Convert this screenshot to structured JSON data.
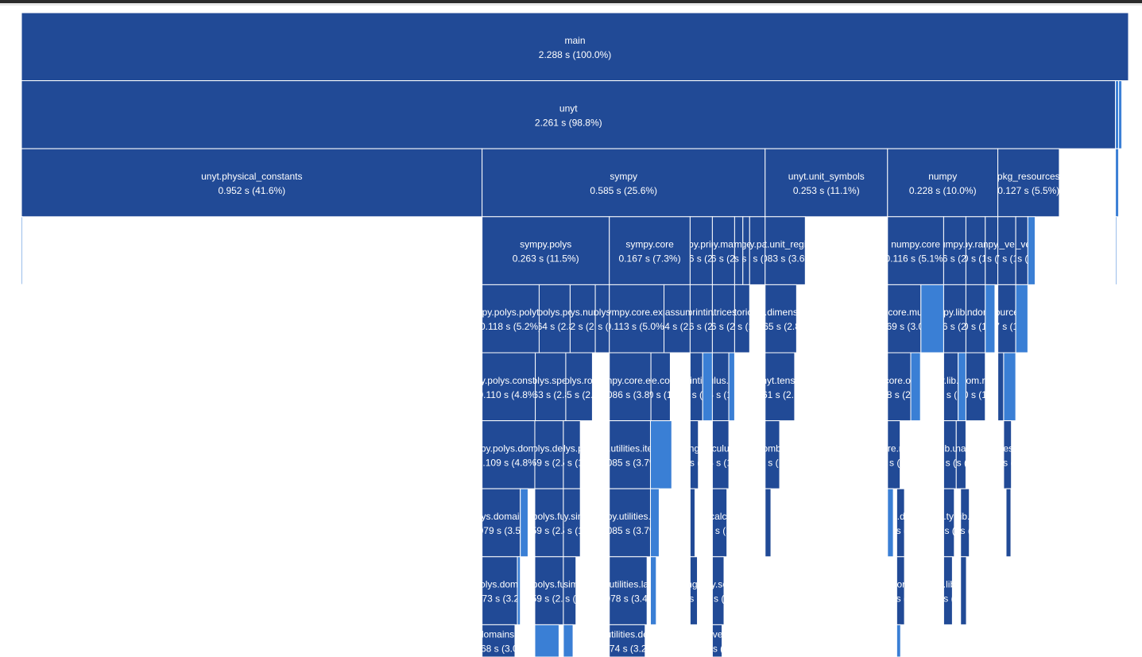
{
  "chart_data": {
    "type": "icicle",
    "title": "",
    "colors": {
      "primary": "#214a96",
      "light": "#3a7fd5",
      "edge": "#ffffff"
    },
    "nodes": [
      {
        "level": 0,
        "start": 0.0,
        "value": 2.288,
        "name": "main",
        "time": "2.288 s (100.0%)"
      },
      {
        "level": 1,
        "start": 0.0,
        "value": 2.261,
        "name": "unyt",
        "time": "2.261 s (98.8%)"
      },
      {
        "level": 1,
        "start": 2.261,
        "value": 0.0066,
        "name": "",
        "time": "",
        "light": true
      },
      {
        "level": 1,
        "start": 2.2676,
        "value": 0.0066,
        "name": "",
        "time": "",
        "light": true
      },
      {
        "level": 2,
        "start": 0.0,
        "value": 0.952,
        "name": "unyt.physical_constants",
        "time": "0.952 s (41.6%)"
      },
      {
        "level": 2,
        "start": 0.952,
        "value": 0.585,
        "name": "sympy",
        "time": "0.585 s (25.6%)"
      },
      {
        "level": 2,
        "start": 1.537,
        "value": 0.253,
        "name": "unyt.unit_symbols",
        "time": "0.253 s (11.1%)"
      },
      {
        "level": 2,
        "start": 1.79,
        "value": 0.228,
        "name": "numpy",
        "time": "0.228 s (10.0%)"
      },
      {
        "level": 2,
        "start": 2.018,
        "value": 0.127,
        "name": "pkg_resources",
        "time": "0.127 s (5.5%)"
      },
      {
        "level": 2,
        "start": 2.261,
        "value": 0.0066,
        "name": "",
        "time": "",
        "light": true
      },
      {
        "level": 3,
        "start": 0.0,
        "value": 0.0016,
        "name": "",
        "time": "",
        "light": true
      },
      {
        "level": 3,
        "start": 0.952,
        "value": 0.263,
        "name": "sympy.polys",
        "time": "0.263 s (11.5%)"
      },
      {
        "level": 3,
        "start": 1.215,
        "value": 0.167,
        "name": "sympy.core",
        "time": "0.167 s (7.3%)"
      },
      {
        "level": 3,
        "start": 1.382,
        "value": 0.046,
        "name": "sympy.printing",
        "time": "0.046 s (2.0%)"
      },
      {
        "level": 3,
        "start": 1.428,
        "value": 0.046,
        "name": "sympy.matrices",
        "time": "0.046 s (2.0%)"
      },
      {
        "level": 3,
        "start": 1.474,
        "value": 0.017,
        "name": "sympy.combinatorics",
        "time": "0.017 s (0.7%)"
      },
      {
        "level": 3,
        "start": 1.491,
        "value": 0.014,
        "name": "sympy.geometry",
        "time": "0.014 s (0.6%)"
      },
      {
        "level": 3,
        "start": 1.505,
        "value": 0.032,
        "name": "sympy.parsing",
        "time": "0.032 s (1.4%)"
      },
      {
        "level": 3,
        "start": 1.537,
        "value": 0.083,
        "name": "unyt.unit_registry",
        "time": "0.083 s (3.6%)"
      },
      {
        "level": 3,
        "start": 1.79,
        "value": 0.116,
        "name": "numpy.core",
        "time": "0.116 s (5.1%)"
      },
      {
        "level": 3,
        "start": 1.906,
        "value": 0.046,
        "name": "numpy.lib",
        "time": "0.046 s (2.0%)"
      },
      {
        "level": 3,
        "start": 1.952,
        "value": 0.04,
        "name": "numpy.random",
        "time": "0.040 s (1.7%)"
      },
      {
        "level": 3,
        "start": 1.992,
        "value": 0.026,
        "name": "numpy.ma",
        "time": "0.026 s (1.1%)"
      },
      {
        "level": 3,
        "start": 2.018,
        "value": 0.037,
        "name": "pkg_resources._vendor.packaging",
        "time": "0.037 s (1.6%)"
      },
      {
        "level": 3,
        "start": 2.055,
        "value": 0.025,
        "name": "pkg_resources._vendor.pyparsing",
        "time": "0.025 s (1.1%)"
      },
      {
        "level": 3,
        "start": 2.08,
        "value": 0.015,
        "name": "",
        "time": "",
        "light": true
      },
      {
        "level": 3,
        "start": 2.261,
        "value": 0.0016,
        "name": "",
        "time": "",
        "light": true
      },
      {
        "level": 4,
        "start": 0.952,
        "value": 0.118,
        "name": "sympy.polys.polytools",
        "time": "0.118 s (5.2%)"
      },
      {
        "level": 4,
        "start": 1.07,
        "value": 0.064,
        "name": "sympy.polys.polyroots",
        "time": "0.064 s (2.8%)"
      },
      {
        "level": 4,
        "start": 1.134,
        "value": 0.052,
        "name": "sympy.polys.numberfields",
        "time": "0.052 s (2.3%)"
      },
      {
        "level": 4,
        "start": 1.186,
        "value": 0.029,
        "name": "sympy.polys.partfrac",
        "time": "0.029 s (1.3%)"
      },
      {
        "level": 4,
        "start": 1.215,
        "value": 0.113,
        "name": "sympy.core.expr",
        "time": "0.113 s (5.0%)"
      },
      {
        "level": 4,
        "start": 1.328,
        "value": 0.054,
        "name": "sympy.assumptions",
        "time": "0.054 s (2.4%)"
      },
      {
        "level": 4,
        "start": 1.382,
        "value": 0.046,
        "name": "sympy.printing.pretty",
        "time": "0.046 s (2.0%)"
      },
      {
        "level": 4,
        "start": 1.428,
        "value": 0.046,
        "name": "sympy.matrices.common",
        "time": "0.046 s (2.0%)"
      },
      {
        "level": 4,
        "start": 1.474,
        "value": 0.031,
        "name": "sympy.combinatorics.perm_groups",
        "time": "0.031 s (1.4%)"
      },
      {
        "level": 4,
        "start": 1.537,
        "value": 0.065,
        "name": "unyt.dimensions",
        "time": "0.065 s (2.8%)"
      },
      {
        "level": 4,
        "start": 1.79,
        "value": 0.069,
        "name": "numpy.core.multiarray",
        "time": "0.069 s (3.0%)"
      },
      {
        "level": 4,
        "start": 1.859,
        "value": 0.047,
        "name": "",
        "time": "",
        "light": true
      },
      {
        "level": 4,
        "start": 1.906,
        "value": 0.046,
        "name": "numpy.lib.utils",
        "time": "0.046 s (2.0%)"
      },
      {
        "level": 4,
        "start": 1.952,
        "value": 0.04,
        "name": "numpy.random.mtrand",
        "time": "0.040 s (1.7%)"
      },
      {
        "level": 4,
        "start": 1.992,
        "value": 0.02,
        "name": "",
        "time": "",
        "light": true
      },
      {
        "level": 4,
        "start": 2.018,
        "value": 0.037,
        "name": "pkg_resources.extern",
        "time": "0.037 s (1.6%)"
      },
      {
        "level": 4,
        "start": 2.055,
        "value": 0.025,
        "name": "",
        "time": "",
        "light": true
      },
      {
        "level": 5,
        "start": 0.952,
        "value": 0.11,
        "name": "sympy.polys.constructor",
        "time": "0.110 s (4.8%)"
      },
      {
        "level": 5,
        "start": 1.062,
        "value": 0.063,
        "name": "sympy.polys.specialpolys",
        "time": "0.063 s (2.8%)"
      },
      {
        "level": 5,
        "start": 1.125,
        "value": 0.055,
        "name": "sympy.polys.rootoftools",
        "time": "0.055 s (2.4%)"
      },
      {
        "level": 5,
        "start": 1.215,
        "value": 0.086,
        "name": "sympy.core.evalf",
        "time": "0.086 s (3.8%)"
      },
      {
        "level": 5,
        "start": 1.301,
        "value": 0.04,
        "name": "sympy.core.compatibility",
        "time": "0.040 s (1.7%)"
      },
      {
        "level": 5,
        "start": 1.382,
        "value": 0.026,
        "name": "sympy.printing.ccode",
        "time": "0.026 s (1.1%)"
      },
      {
        "level": 5,
        "start": 1.408,
        "value": 0.02,
        "name": "",
        "time": "",
        "light": true
      },
      {
        "level": 5,
        "start": 1.428,
        "value": 0.034,
        "name": "sympy.calculus.singularities",
        "time": "0.034 s (1.5%)"
      },
      {
        "level": 5,
        "start": 1.462,
        "value": 0.012,
        "name": "",
        "time": "",
        "light": true
      },
      {
        "level": 5,
        "start": 1.537,
        "value": 0.061,
        "name": "unyt.tensor",
        "time": "0.061 s (2.7%)"
      },
      {
        "level": 5,
        "start": 1.79,
        "value": 0.048,
        "name": "numpy.core.overrides",
        "time": "0.048 s (2.1%)"
      },
      {
        "level": 5,
        "start": 1.838,
        "value": 0.02,
        "name": "",
        "time": "",
        "light": true
      },
      {
        "level": 5,
        "start": 1.906,
        "value": 0.03,
        "name": "numpy.lib.mixins",
        "time": "0.030 s (1.3%)"
      },
      {
        "level": 5,
        "start": 1.936,
        "value": 0.016,
        "name": "",
        "time": "",
        "light": true
      },
      {
        "level": 5,
        "start": 1.952,
        "value": 0.04,
        "name": "numpy.random.randomstate",
        "time": "0.040 s (1.7%)"
      },
      {
        "level": 5,
        "start": 2.018,
        "value": 0.012,
        "name": "pkg_resources._vendor",
        "time": "0.012 s (0.5%)"
      },
      {
        "level": 5,
        "start": 2.03,
        "value": 0.025,
        "name": "",
        "time": "",
        "light": true
      },
      {
        "level": 6,
        "start": 0.952,
        "value": 0.109,
        "name": "sympy.polys.domains",
        "time": "0.109 s (4.8%)"
      },
      {
        "level": 6,
        "start": 1.061,
        "value": 0.059,
        "name": "sympy.polys.densebasic",
        "time": "0.059 s (2.6%)"
      },
      {
        "level": 6,
        "start": 1.12,
        "value": 0.035,
        "name": "sympy.polys.polyerrors",
        "time": "0.035 s (1.5%)"
      },
      {
        "level": 6,
        "start": 1.215,
        "value": 0.085,
        "name": "sympy.utilities.iterables",
        "time": "0.085 s (3.7%)"
      },
      {
        "level": 6,
        "start": 1.3,
        "value": 0.044,
        "name": "",
        "time": "",
        "light": true
      },
      {
        "level": 6,
        "start": 1.382,
        "value": 0.017,
        "name": "sympy.printing.codeprinter",
        "time": "0.017 s (0.7%)"
      },
      {
        "level": 6,
        "start": 1.428,
        "value": 0.034,
        "name": "sympy.calculus.calculus",
        "time": "0.034 s (1.5%)"
      },
      {
        "level": 6,
        "start": 1.537,
        "value": 0.03,
        "name": "sympy.combinatorics",
        "time": "0.030 s (1.3%)"
      },
      {
        "level": 6,
        "start": 1.79,
        "value": 0.026,
        "name": "numpy.core.multiarray",
        "time": "0.026 s (1.1%)"
      },
      {
        "level": 6,
        "start": 1.906,
        "value": 0.026,
        "name": "numpy.lib.ufunclike",
        "time": "0.026 s (1.1%)"
      },
      {
        "level": 6,
        "start": 1.932,
        "value": 0.02,
        "name": "numpy.lib.nanfunctions",
        "time": "0.020 s (0.9%)"
      },
      {
        "level": 6,
        "start": 2.03,
        "value": 0.016,
        "name": "pkg_resources._vendor.six",
        "time": "0.016 s (0.7%)"
      },
      {
        "level": 7,
        "start": 0.952,
        "value": 0.079,
        "name": "sympy.polys.domains.domain",
        "time": "0.079 s (3.5%)"
      },
      {
        "level": 7,
        "start": 1.031,
        "value": 0.016,
        "name": "",
        "time": "",
        "light": true
      },
      {
        "level": 7,
        "start": 1.061,
        "value": 0.059,
        "name": "sympy.polys.functions",
        "time": "0.059 s (2.6%)"
      },
      {
        "level": 7,
        "start": 1.12,
        "value": 0.035,
        "name": "sympy.simplify",
        "time": "0.035 s (1.5%)"
      },
      {
        "level": 7,
        "start": 1.215,
        "value": 0.085,
        "name": "sympy.utilities.misc",
        "time": "0.085 s (3.7%)"
      },
      {
        "level": 7,
        "start": 1.3,
        "value": 0.018,
        "name": "",
        "time": "",
        "light": true
      },
      {
        "level": 7,
        "start": 1.382,
        "value": 0.01,
        "name": "sympy.printing.str",
        "time": "0.010 s (0.4%)"
      },
      {
        "level": 7,
        "start": 1.428,
        "value": 0.03,
        "name": "sympy.calculus.util",
        "time": "0.030 s (1.3%)"
      },
      {
        "level": 7,
        "start": 1.537,
        "value": 0.012,
        "name": "unyt.tolerances",
        "time": "0.012 s (0.5%)"
      },
      {
        "level": 7,
        "start": 1.79,
        "value": 0.012,
        "name": "",
        "time": "",
        "light": true
      },
      {
        "level": 7,
        "start": 1.809,
        "value": 0.016,
        "name": "numpy.core.defchararray",
        "time": "0.016 s (0.7%)"
      },
      {
        "level": 7,
        "start": 1.906,
        "value": 0.022,
        "name": "numpy.lib.type_check",
        "time": "0.022 s (1.0%)"
      },
      {
        "level": 7,
        "start": 1.941,
        "value": 0.018,
        "name": "numpy.lib.scimath",
        "time": "0.018 s (0.8%)"
      },
      {
        "level": 7,
        "start": 2.035,
        "value": 0.01,
        "name": "pkg_resources.extern.six",
        "time": "0.010 s (0.4%)"
      },
      {
        "level": 8,
        "start": 0.952,
        "value": 0.073,
        "name": "sympy.polys.domains.ring",
        "time": "0.073 s (3.2%)"
      },
      {
        "level": 8,
        "start": 1.025,
        "value": 0.006,
        "name": "",
        "time": "",
        "light": true
      },
      {
        "level": 8,
        "start": 1.061,
        "value": 0.059,
        "name": "sympy.polys.functions",
        "time": "0.059 s (2.6%)"
      },
      {
        "level": 8,
        "start": 1.12,
        "value": 0.026,
        "name": "sympy.simplify.fu",
        "time": "0.026 s (1.1%)"
      },
      {
        "level": 8,
        "start": 1.215,
        "value": 0.078,
        "name": "sympy.utilities.lambdify",
        "time": "0.078 s (3.4%)"
      },
      {
        "level": 8,
        "start": 1.3,
        "value": 0.012,
        "name": "",
        "time": "",
        "light": true
      },
      {
        "level": 8,
        "start": 1.382,
        "value": 0.015,
        "name": "sympy.printing.conventions",
        "time": "0.015 s (0.7%)"
      },
      {
        "level": 8,
        "start": 1.428,
        "value": 0.024,
        "name": "sympy.solvers",
        "time": "0.024 s (1.0%)"
      },
      {
        "level": 8,
        "start": 1.809,
        "value": 0.016,
        "name": "numpy.core.umath",
        "time": "0.016 s (0.7%)"
      },
      {
        "level": 8,
        "start": 1.906,
        "value": 0.018,
        "name": "numpy.lib.npyio",
        "time": "0.018 s (0.8%)"
      },
      {
        "level": 8,
        "start": 1.941,
        "value": 0.012,
        "name": "numpy.lib.scimath",
        "time": "0.012 s (0.5%)"
      },
      {
        "level": 9,
        "start": 0.952,
        "value": 0.068,
        "name": "sympy.polys.domains.algebraicfield",
        "time": "0.068 s (3.0%)"
      },
      {
        "level": 9,
        "start": 1.061,
        "value": 0.05,
        "name": "",
        "time": "",
        "light": true
      },
      {
        "level": 9,
        "start": 1.12,
        "value": 0.02,
        "name": "",
        "time": "",
        "light": true
      },
      {
        "level": 9,
        "start": 1.215,
        "value": 0.074,
        "name": "sympy.utilities.decorator",
        "time": "0.074 s (3.2%)"
      },
      {
        "level": 9,
        "start": 1.428,
        "value": 0.02,
        "name": "sympy.solvers.solvers",
        "time": "0.020 s (0.9%)"
      },
      {
        "level": 9,
        "start": 1.809,
        "value": 0.008,
        "name": "",
        "time": "",
        "light": true
      }
    ]
  }
}
